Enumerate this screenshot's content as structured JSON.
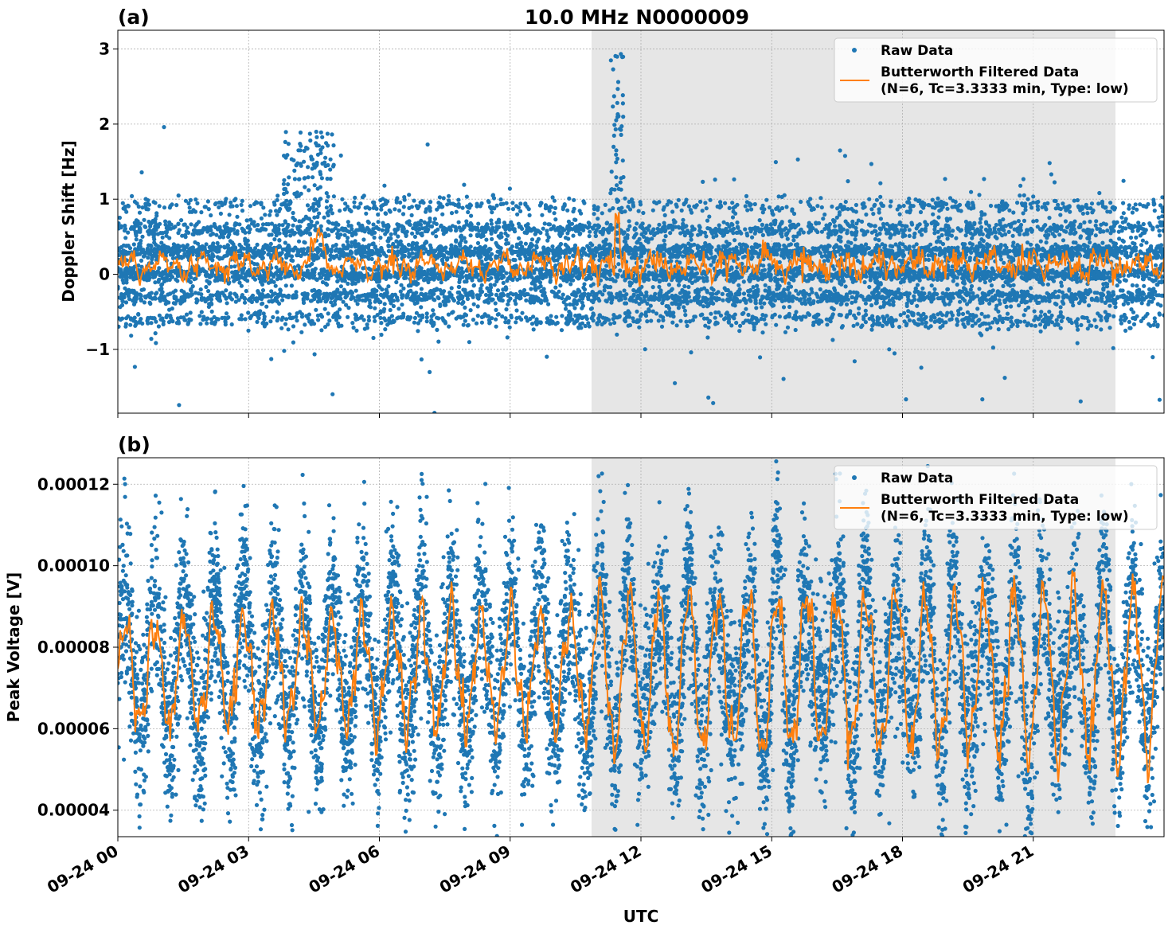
{
  "figure": {
    "title": "10.0 MHz N0000009",
    "xlabel": "UTC",
    "x_tick_labels": [
      "09-24 00",
      "09-24 03",
      "09-24 06",
      "09-24 09",
      "09-24 12",
      "09-24 15",
      "09-24 18",
      "09-24 21"
    ],
    "shaded_interval_hours": [
      10.85,
      22.9
    ],
    "colors": {
      "raw": "#1f77b4",
      "filtered": "#ff7f0e",
      "shade": "#e6e6e6",
      "grid": "#b0b0b0"
    }
  },
  "chart_data": [
    {
      "panel_label": "(a)",
      "type": "scatter",
      "ylabel": "Doppler Shift [Hz]",
      "xlim_hours": [
        0,
        24
      ],
      "ylim": [
        -1.85,
        3.25
      ],
      "y_ticks": [
        -1,
        0,
        1,
        2,
        3
      ],
      "y_tick_labels": [
        "−1",
        "0",
        "1",
        "2",
        "3"
      ],
      "grid": true,
      "legend_position": "top-right",
      "series": [
        {
          "name": "Raw Data",
          "kind": "points",
          "description_values": {
            "bands_hz": [
              -0.6,
              -0.3,
              0.0,
              0.3,
              0.6,
              0.9
            ],
            "max_hz": 3.0,
            "min_hz": -1.6,
            "spike_hour": 11.45
          }
        },
        {
          "name": "Butterworth Filtered Data",
          "name_line2": "(N=6, Tc=3.3333 min, Type: low)",
          "kind": "line",
          "baseline_hz": 0.12,
          "peaks": [
            {
              "hour": 4.6,
              "value": 0.48
            },
            {
              "hour": 11.45,
              "value": 0.72
            }
          ]
        }
      ]
    },
    {
      "panel_label": "(b)",
      "type": "scatter",
      "ylabel": "Peak Voltage [V]",
      "xlim_hours": [
        0,
        24
      ],
      "ylim": [
        3.35e-05,
        0.0001265
      ],
      "y_ticks": [
        4e-05,
        6e-05,
        8e-05,
        0.0001,
        0.00012
      ],
      "y_tick_labels": [
        "0.00004",
        "0.00006",
        "0.00008",
        "0.00010",
        "0.00012"
      ],
      "grid": true,
      "legend_position": "top-right",
      "series": [
        {
          "name": "Raw Data",
          "kind": "points",
          "description_values": {
            "max_v": 0.000121,
            "min_v": 3.7e-05
          }
        },
        {
          "name": "Butterworth Filtered Data",
          "name_line2": "(N=6, Tc=3.3333 min, Type: low)",
          "kind": "line",
          "oscillation_period_min": 40,
          "range_v": [
            5.4e-05,
            0.000105
          ]
        }
      ]
    }
  ]
}
